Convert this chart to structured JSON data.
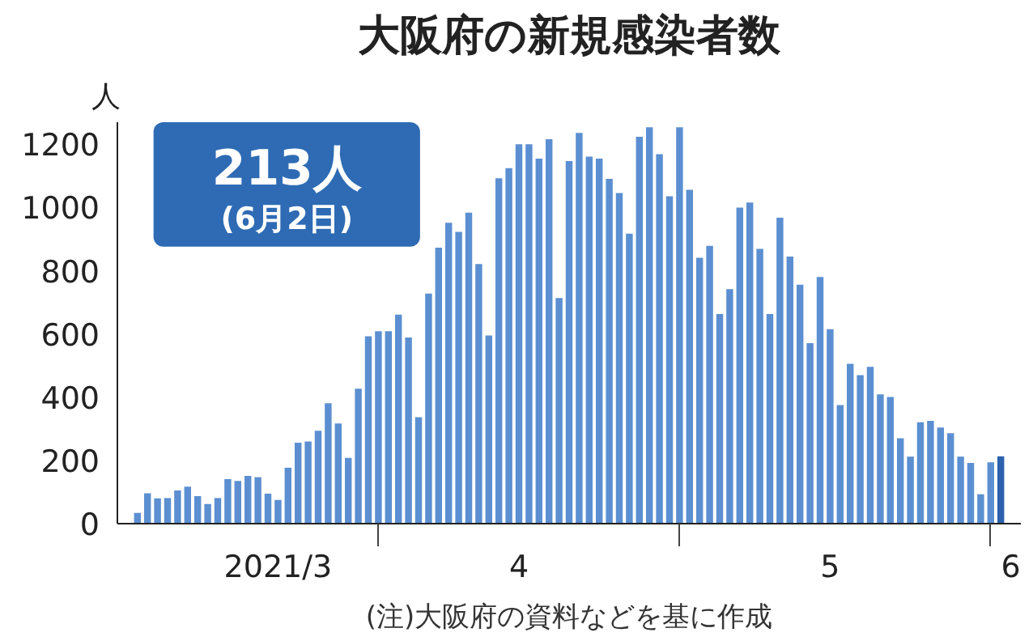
{
  "chart_data": {
    "type": "bar",
    "title": "大阪府の新規感染者数",
    "ylabel": "人",
    "annotations": [
      "213人",
      "(6月2日)",
      "(注)大阪府の資料などを基に作成"
    ],
    "x": [
      "2021-03-08",
      "2021-03-09",
      "2021-03-10",
      "2021-03-11",
      "2021-03-12",
      "2021-03-13",
      "2021-03-14",
      "2021-03-15",
      "2021-03-16",
      "2021-03-17",
      "2021-03-18",
      "2021-03-19",
      "2021-03-20",
      "2021-03-21",
      "2021-03-22",
      "2021-03-23",
      "2021-03-24",
      "2021-03-25",
      "2021-03-26",
      "2021-03-27",
      "2021-03-28",
      "2021-03-29",
      "2021-03-30",
      "2021-03-31",
      "2021-04-01",
      "2021-04-02",
      "2021-04-03",
      "2021-04-04",
      "2021-04-05",
      "2021-04-06",
      "2021-04-07",
      "2021-04-08",
      "2021-04-09",
      "2021-04-10",
      "2021-04-11",
      "2021-04-12",
      "2021-04-13",
      "2021-04-14",
      "2021-04-15",
      "2021-04-16",
      "2021-04-17",
      "2021-04-18",
      "2021-04-19",
      "2021-04-20",
      "2021-04-21",
      "2021-04-22",
      "2021-04-23",
      "2021-04-24",
      "2021-04-25",
      "2021-04-26",
      "2021-04-27",
      "2021-04-28",
      "2021-04-29",
      "2021-04-30",
      "2021-05-01",
      "2021-05-02",
      "2021-05-03",
      "2021-05-04",
      "2021-05-05",
      "2021-05-06",
      "2021-05-07",
      "2021-05-08",
      "2021-05-09",
      "2021-05-10",
      "2021-05-11",
      "2021-05-12",
      "2021-05-13",
      "2021-05-14",
      "2021-05-15",
      "2021-05-16",
      "2021-05-17",
      "2021-05-18",
      "2021-05-19",
      "2021-05-20",
      "2021-05-21",
      "2021-05-22",
      "2021-05-23",
      "2021-05-24",
      "2021-05-25",
      "2021-05-26",
      "2021-05-27",
      "2021-05-28",
      "2021-05-29",
      "2021-05-30",
      "2021-05-31",
      "2021-06-01",
      "2021-06-02"
    ],
    "values": [
      34,
      96,
      80,
      81,
      105,
      117,
      87,
      62,
      81,
      141,
      135,
      151,
      147,
      95,
      75,
      177,
      256,
      260,
      294,
      381,
      317,
      208,
      427,
      593,
      609,
      609,
      661,
      589,
      337,
      728,
      873,
      952,
      923,
      984,
      821,
      595,
      1093,
      1125,
      1200,
      1200,
      1155,
      1216,
      714,
      1147,
      1236,
      1161,
      1155,
      1091,
      1046,
      917,
      1224,
      1254,
      1169,
      1036,
      1254,
      1056,
      841,
      879,
      663,
      742,
      1000,
      1016,
      869,
      663,
      968,
      845,
      756,
      571,
      780,
      615,
      375,
      506,
      470,
      496,
      409,
      401,
      270,
      212,
      321,
      325,
      304,
      286,
      212,
      192,
      93,
      194,
      213
    ],
    "colors": [
      "#5b8fd1",
      "#5b8fd1",
      "#5b8fd1",
      "#5b8fd1",
      "#5b8fd1",
      "#5b8fd1",
      "#5b8fd1",
      "#5b8fd1",
      "#5b8fd1",
      "#5b8fd1",
      "#5b8fd1",
      "#5b8fd1",
      "#5b8fd1",
      "#5b8fd1",
      "#5b8fd1",
      "#5b8fd1",
      "#5b8fd1",
      "#5b8fd1",
      "#5b8fd1",
      "#5b8fd1",
      "#5b8fd1",
      "#5b8fd1",
      "#5b8fd1",
      "#5b8fd1",
      "#5b8fd1",
      "#5b8fd1",
      "#5b8fd1",
      "#5b8fd1",
      "#5b8fd1",
      "#5b8fd1",
      "#5b8fd1",
      "#5b8fd1",
      "#5b8fd1",
      "#5b8fd1",
      "#5b8fd1",
      "#5b8fd1",
      "#5b8fd1",
      "#5b8fd1",
      "#5b8fd1",
      "#5b8fd1",
      "#5b8fd1",
      "#5b8fd1",
      "#5b8fd1",
      "#5b8fd1",
      "#5b8fd1",
      "#5b8fd1",
      "#5b8fd1",
      "#5b8fd1",
      "#5b8fd1",
      "#5b8fd1",
      "#5b8fd1",
      "#5b8fd1",
      "#5b8fd1",
      "#5b8fd1",
      "#5b8fd1",
      "#5b8fd1",
      "#5b8fd1",
      "#5b8fd1",
      "#5b8fd1",
      "#5b8fd1",
      "#5b8fd1",
      "#5b8fd1",
      "#5b8fd1",
      "#5b8fd1",
      "#5b8fd1",
      "#5b8fd1",
      "#5b8fd1",
      "#5b8fd1",
      "#5b8fd1",
      "#5b8fd1",
      "#5b8fd1",
      "#5b8fd1",
      "#5b8fd1",
      "#5b8fd1",
      "#5b8fd1",
      "#5b8fd1",
      "#5b8fd1",
      "#5b8fd1",
      "#5b8fd1",
      "#5b8fd1",
      "#5b8fd1",
      "#5b8fd1",
      "#5b8fd1",
      "#5b8fd1",
      "#5b8fd1",
      "#5b8fd1",
      "#2c62ad"
    ],
    "xlim": [
      "2021-03-06",
      "2021-06-04"
    ],
    "ylim": [
      0,
      1270
    ],
    "yticks": [
      0,
      200,
      400,
      600,
      800,
      1000,
      1200
    ],
    "xticks": [
      {
        "value": "2021-03-22",
        "label": "2021/3"
      },
      {
        "value": "2021-04-01",
        "label": null
      },
      {
        "value": "2021-04-15",
        "label": "4"
      },
      {
        "value": "2021-05-01",
        "label": null
      },
      {
        "value": "2021-05-16",
        "label": "5"
      },
      {
        "value": "2021-06-01",
        "label": null
      },
      {
        "value": "2021-06-03",
        "label": "6"
      }
    ],
    "grid": false
  }
}
